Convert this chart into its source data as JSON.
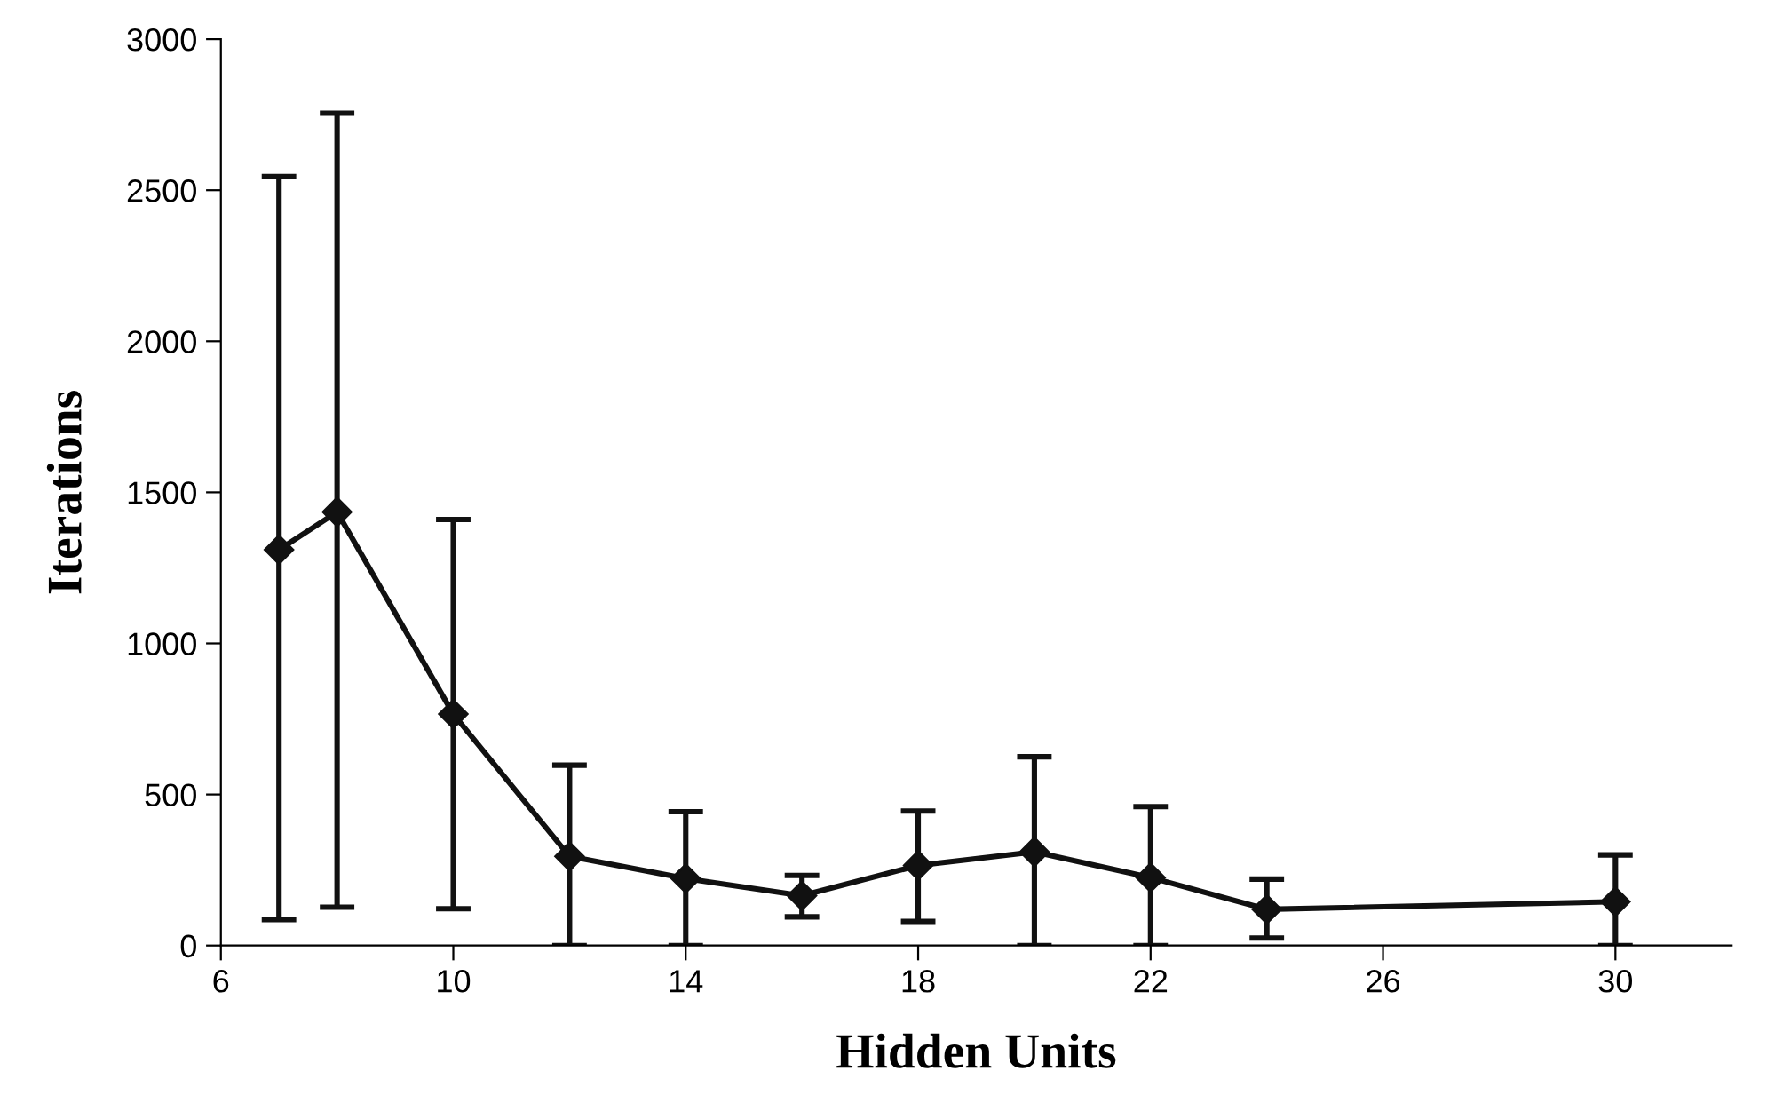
{
  "chart_data": {
    "type": "line",
    "xlabel": "Hidden Units",
    "ylabel": "Iterations",
    "x": [
      7,
      8,
      10,
      12,
      14,
      16,
      18,
      20,
      22,
      24,
      30
    ],
    "series": [
      {
        "color": "#111111",
        "values": [
          1310,
          1435,
          766,
          295,
          222,
          165,
          265,
          310,
          225,
          120,
          145
        ],
        "errors": [
          [
            86,
            2545
          ],
          [
            127,
            2755
          ],
          [
            122,
            1410
          ],
          [
            0,
            597
          ],
          [
            0,
            443
          ],
          [
            95,
            232
          ],
          [
            80,
            445
          ],
          [
            0,
            625
          ],
          [
            0,
            460
          ],
          [
            25,
            220
          ],
          [
            0,
            300
          ]
        ]
      }
    ],
    "xlim": [
      6,
      32
    ],
    "ylim": [
      0,
      3000
    ],
    "xticks": [
      6,
      10,
      14,
      18,
      22,
      26,
      30
    ],
    "yticks": [
      0,
      500,
      1000,
      1500,
      2000,
      2500,
      3000
    ],
    "grid": false,
    "marker": "diamond",
    "line_style": "solid"
  }
}
